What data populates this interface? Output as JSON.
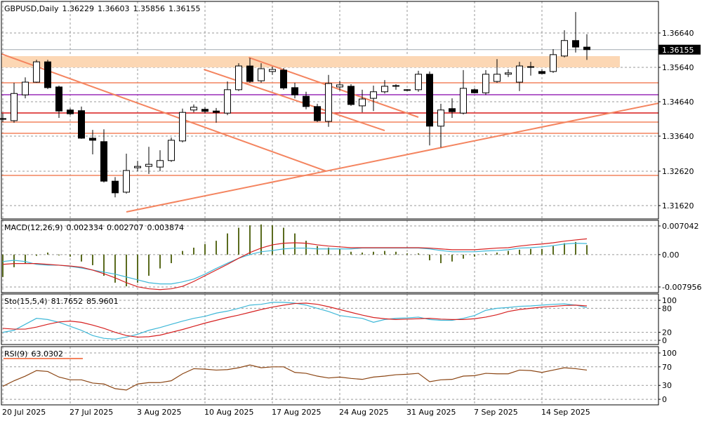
{
  "chart_data": [
    {
      "type": "candlestick",
      "title": "GBPUSD,Daily",
      "categories": [
        "20 Jul 2025",
        null,
        null,
        null,
        null,
        null,
        "27 Jul 2025",
        null,
        null,
        null,
        null,
        null,
        "3 Aug 2025",
        null,
        null,
        null,
        null,
        null,
        "10 Aug 2025",
        null,
        null,
        null,
        null,
        null,
        "17 Aug 2025",
        null,
        null,
        null,
        null,
        null,
        "24 Aug 2025",
        null,
        null,
        null,
        null,
        null,
        "31 Aug 2025",
        null,
        null,
        null,
        null,
        null,
        "7 Sep 2025",
        null,
        null,
        null,
        null,
        null,
        "14 Sep 2025",
        null,
        null,
        null,
        null
      ],
      "open": [
        1.3413,
        1.3409,
        1.3484,
        1.3521,
        1.358,
        1.3507,
        1.344,
        1.3438,
        1.3358,
        1.3348,
        1.3233,
        1.3201,
        1.3272,
        1.3276,
        1.3274,
        1.3293,
        1.335,
        1.344,
        1.3442,
        1.3437,
        1.3431,
        1.3499,
        1.3568,
        1.3525,
        1.3552,
        1.3556,
        1.3505,
        1.348,
        1.345,
        1.3407,
        1.3507,
        1.3509,
        1.3452,
        1.3474,
        1.3493,
        1.3509,
        1.3499,
        1.3499,
        1.3544,
        1.3393,
        1.3444,
        1.3431,
        1.3499,
        1.349,
        1.3523,
        1.3544,
        1.3521,
        1.3566,
        1.3552,
        1.3552,
        1.3597,
        1.3642,
        1.36229
      ],
      "high": [
        1.343,
        1.3519,
        1.3535,
        1.3586,
        1.3586,
        1.3511,
        1.3445,
        1.345,
        1.3382,
        1.3384,
        1.3245,
        1.3313,
        1.3292,
        1.3333,
        1.3323,
        1.336,
        1.3444,
        1.3456,
        1.3448,
        1.3446,
        1.3523,
        1.3576,
        1.3591,
        1.3576,
        1.3566,
        1.3562,
        1.3519,
        1.3493,
        1.3458,
        1.3542,
        1.3525,
        1.3515,
        1.3499,
        1.3511,
        1.3527,
        1.3515,
        1.3501,
        1.3554,
        1.3552,
        1.3458,
        1.3474,
        1.3556,
        1.3503,
        1.3556,
        1.3588,
        1.3558,
        1.358,
        1.358,
        1.3558,
        1.3617,
        1.3672,
        1.3725,
        1.36603
      ],
      "low": [
        1.3405,
        1.3403,
        1.3474,
        1.3519,
        1.3501,
        1.3417,
        1.3425,
        1.3356,
        1.3311,
        1.3229,
        1.3186,
        1.3197,
        1.3262,
        1.3254,
        1.3262,
        1.3289,
        1.3346,
        1.3433,
        1.343,
        1.3403,
        1.3425,
        1.3495,
        1.3519,
        1.3519,
        1.3542,
        1.3499,
        1.3474,
        1.3442,
        1.3405,
        1.3391,
        1.3497,
        1.3452,
        1.3433,
        1.3437,
        1.3488,
        1.3499,
        1.3495,
        1.3493,
        1.3337,
        1.3331,
        1.3417,
        1.3427,
        1.3488,
        1.3484,
        1.3519,
        1.3536,
        1.3495,
        1.354,
        1.3544,
        1.3548,
        1.3593,
        1.3607,
        1.35856
      ],
      "close": [
        1.3415,
        1.3488,
        1.3521,
        1.358,
        1.3505,
        1.3437,
        1.3429,
        1.3358,
        1.3352,
        1.3233,
        1.3199,
        1.3264,
        1.3276,
        1.3282,
        1.3293,
        1.3352,
        1.3433,
        1.3448,
        1.3436,
        1.3433,
        1.3499,
        1.3568,
        1.3523,
        1.356,
        1.3558,
        1.3504,
        1.3484,
        1.345,
        1.3409,
        1.3517,
        1.3513,
        1.3456,
        1.3472,
        1.3493,
        1.3509,
        1.3511,
        1.3497,
        1.3544,
        1.3393,
        1.344,
        1.3435,
        1.3503,
        1.349,
        1.3544,
        1.3544,
        1.3548,
        1.3568,
        1.3564,
        1.3546,
        1.3601,
        1.3642,
        1.3623,
        1.36155
      ],
      "ylim": [
        1.31232,
        1.37558
      ],
      "yticks": [
        {
          "value": 1.3664,
          "label": "1.36640"
        },
        {
          "value": 1.3564,
          "label": "1.35640"
        },
        {
          "value": 1.3464,
          "label": "1.34640"
        },
        {
          "value": 1.3364,
          "label": "1.33640"
        },
        {
          "value": 1.3262,
          "label": "1.32620"
        },
        {
          "value": 1.3162,
          "label": "1.31620"
        }
      ],
      "grid": true,
      "zone": {
        "low": 1.3564,
        "high": 1.35967,
        "color": "#fcd7b4"
      },
      "levels": [
        {
          "value": 1.35191,
          "color": "#f4845f"
        },
        {
          "value": 1.34844,
          "color": "#9a2bb8"
        },
        {
          "value": 1.34313,
          "color": "#d91a1a"
        },
        {
          "value": 1.34048,
          "color": "#f4845f"
        },
        {
          "value": 1.33722,
          "color": "#f4845f"
        },
        {
          "value": 1.32497,
          "color": "#f4845f"
        }
      ],
      "trendlines": [
        {
          "x": [
            -0.1,
            28.8
          ],
          "y": [
            1.36028,
            1.3262
          ],
          "color": "#f4845f"
        },
        {
          "x": [
            17.9,
            34
          ],
          "y": [
            1.35579,
            1.33803
          ],
          "color": "#f4845f"
        },
        {
          "x": [
            21.9,
            37
          ],
          "y": [
            1.35926,
            1.34191
          ],
          "color": "#f4845f"
        },
        {
          "x": [
            11,
            58.4
          ],
          "y": [
            1.31436,
            1.34599
          ],
          "color": "#f4845f"
        }
      ],
      "price_line_color": "#a0a8b0"
    },
    {
      "type": "macd",
      "title": "MACD(12,26,9)",
      "histogram": {
        "color": "#5a6b1e",
        "values": [
          -0.0055,
          -0.0031,
          -0.0021,
          -0.0003,
          0.0005,
          -0.0002,
          -0.0005,
          -0.0017,
          -0.0026,
          -0.0052,
          -0.0069,
          -0.0078,
          -0.0069,
          -0.0052,
          -0.0034,
          -0.0021,
          0.0009,
          0.0017,
          0.0026,
          0.0034,
          0.0052,
          0.0066,
          0.0072,
          0.0074,
          0.0072,
          0.0066,
          0.0052,
          0.0034,
          0.0021,
          0.0017,
          0.0014,
          0.0007,
          0.0005,
          0.0007,
          0.0009,
          0.0007,
          0.0003,
          0.0003,
          -0.0014,
          -0.0021,
          -0.0017,
          -0.001,
          -0.0005,
          0.0003,
          0.0005,
          0.0009,
          0.0012,
          0.0014,
          0.0014,
          0.0021,
          0.0028,
          0.0031,
          0.002334
        ]
      },
      "series": [
        {
          "color": "#3fb8d8",
          "values": [
            -0.0017,
            -0.0014,
            -0.0017,
            -0.0024,
            -0.0026,
            -0.0026,
            -0.0029,
            -0.0033,
            -0.0038,
            -0.0043,
            -0.0048,
            -0.0055,
            -0.0062,
            -0.0069,
            -0.0072,
            -0.0072,
            -0.0067,
            -0.006,
            -0.0048,
            -0.0034,
            -0.0021,
            -0.0009,
            0,
            0.0007,
            0.001,
            0.0014,
            0.0016,
            0.0016,
            0.0014,
            0.0014,
            0.0014,
            0.0014,
            0.0016,
            0.0016,
            0.0016,
            0.0016,
            0.0016,
            0.0016,
            0.0014,
            0.001,
            0.0007,
            0.0007,
            0.0007,
            0.0009,
            0.001,
            0.0012,
            0.0016,
            0.0017,
            0.0019,
            0.0022,
            0.0026,
            0.0028,
            0.002707
          ]
        },
        {
          "color": "#d62020",
          "values": [
            -0.0024,
            -0.0022,
            -0.0022,
            -0.0022,
            -0.0024,
            -0.0026,
            -0.0028,
            -0.0031,
            -0.0038,
            -0.0047,
            -0.0057,
            -0.0069,
            -0.0079,
            -0.0084,
            -0.0086,
            -0.0084,
            -0.0078,
            -0.0066,
            -0.0052,
            -0.0038,
            -0.0024,
            -0.0009,
            0.0005,
            0.0016,
            0.0024,
            0.0028,
            0.0029,
            0.0028,
            0.0024,
            0.0021,
            0.0019,
            0.0017,
            0.0017,
            0.0017,
            0.0017,
            0.0017,
            0.0017,
            0.0017,
            0.0016,
            0.0014,
            0.0012,
            0.0012,
            0.0012,
            0.0014,
            0.0016,
            0.0017,
            0.0021,
            0.0024,
            0.0026,
            0.0029,
            0.0033,
            0.0036,
            0.003874
          ]
        }
      ],
      "ylim": [
        -0.009335,
        0.008421
      ],
      "yticks": [
        0.007042,
        {
          "value": 0,
          "label": "0.00"
        },
        -0.007956
      ]
    },
    {
      "type": "line",
      "title": "Sto(15,5,4)",
      "series": [
        {
          "color": "#3fb8d8",
          "values": [
            20,
            25,
            40,
            55,
            52,
            45,
            35,
            25,
            12,
            5,
            3,
            8,
            15,
            25,
            32,
            40,
            48,
            55,
            60,
            68,
            73,
            80,
            88,
            90,
            95,
            95,
            93,
            88,
            80,
            72,
            62,
            58,
            55,
            45,
            52,
            55,
            56,
            58,
            52,
            50,
            50,
            55,
            62,
            75,
            80,
            82,
            85,
            86,
            88,
            90,
            91,
            88,
            81.7652
          ]
        },
        {
          "color": "#d62020",
          "values": [
            30,
            28,
            28,
            33,
            40,
            46,
            48,
            45,
            38,
            30,
            20,
            12,
            8,
            9,
            13,
            20,
            27,
            35,
            43,
            50,
            57,
            63,
            70,
            77,
            83,
            88,
            92,
            93,
            90,
            84,
            77,
            70,
            63,
            57,
            54,
            52,
            53,
            54,
            55,
            53,
            52,
            52,
            54,
            58,
            64,
            72,
            77,
            80,
            83,
            85,
            87,
            88,
            85.9601
          ]
        }
      ],
      "ylim": [
        -10.5,
        115.8
      ],
      "yticks": [
        100,
        80,
        20,
        0
      ]
    },
    {
      "type": "line",
      "title": "RSI(9)",
      "series": [
        {
          "color": "#8b4513",
          "values": [
            28,
            40,
            50,
            62,
            60,
            48,
            42,
            42,
            35,
            33,
            23,
            20,
            33,
            36,
            36,
            40,
            55,
            66,
            65,
            63,
            64,
            68,
            74,
            68,
            70,
            70,
            58,
            56,
            50,
            46,
            48,
            45,
            43,
            48,
            50,
            53,
            54,
            56,
            38,
            42,
            43,
            50,
            51,
            56,
            55,
            55,
            63,
            62,
            58,
            63,
            68,
            66,
            63.0302
          ]
        }
      ],
      "ylim": [
        -12,
        113.6
      ],
      "yticks": [
        100,
        70,
        30,
        0
      ]
    }
  ]
}
